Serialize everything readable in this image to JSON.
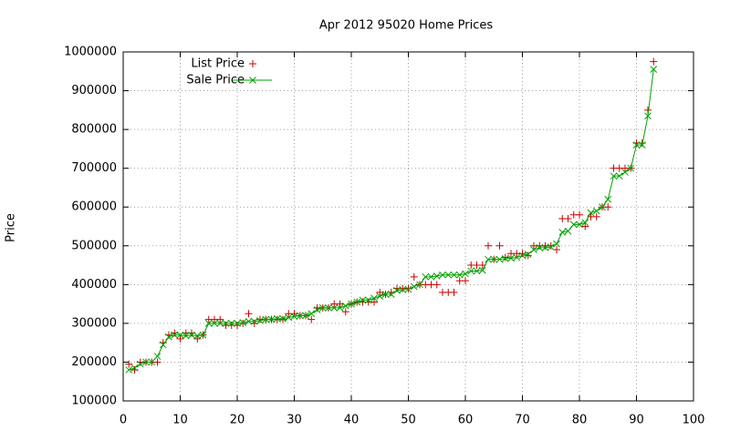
{
  "chart_data": {
    "type": "scatter",
    "title": "Apr 2012 95020 Home Prices",
    "y_label": "Price",
    "x": [
      1,
      2,
      3,
      4,
      5,
      6,
      7,
      8,
      9,
      10,
      11,
      12,
      13,
      14,
      15,
      16,
      17,
      18,
      19,
      20,
      21,
      22,
      23,
      24,
      25,
      26,
      27,
      28,
      29,
      30,
      31,
      32,
      33,
      34,
      35,
      36,
      37,
      38,
      39,
      40,
      41,
      42,
      43,
      44,
      45,
      46,
      47,
      48,
      49,
      50,
      51,
      52,
      53,
      54,
      55,
      56,
      57,
      58,
      59,
      60,
      61,
      62,
      63,
      64,
      65,
      66,
      67,
      68,
      69,
      70,
      71,
      72,
      73,
      74,
      75,
      76,
      77,
      78,
      79,
      80,
      81,
      82,
      83,
      84,
      85,
      86,
      87,
      88,
      89,
      90,
      91,
      92,
      93
    ],
    "series": [
      {
        "name": "List Price",
        "color": "#cc0000",
        "marker": "plus",
        "line": false,
        "values": [
          195000,
          180000,
          200000,
          200000,
          200000,
          200000,
          250000,
          270000,
          275000,
          260000,
          275000,
          275000,
          260000,
          270000,
          310000,
          310000,
          310000,
          295000,
          295000,
          295000,
          300000,
          325000,
          300000,
          310000,
          310000,
          310000,
          310000,
          310000,
          325000,
          325000,
          320000,
          320000,
          310000,
          340000,
          340000,
          340000,
          350000,
          350000,
          330000,
          350000,
          355000,
          355000,
          355000,
          355000,
          380000,
          375000,
          380000,
          390000,
          390000,
          390000,
          420000,
          400000,
          400000,
          400000,
          400000,
          380000,
          380000,
          380000,
          410000,
          410000,
          450000,
          450000,
          450000,
          500000,
          465000,
          500000,
          470000,
          480000,
          480000,
          480000,
          475000,
          500000,
          500000,
          500000,
          500000,
          490000,
          570000,
          570000,
          580000,
          580000,
          550000,
          575000,
          575000,
          600000,
          600000,
          700000,
          700000,
          700000,
          700000,
          765000,
          765000,
          850000,
          975000
        ]
      },
      {
        "name": "Sale Price",
        "color": "#00a000",
        "marker": "cross",
        "line": true,
        "values": [
          180000,
          185000,
          195000,
          200000,
          200000,
          215000,
          245000,
          265000,
          270000,
          270000,
          268000,
          270000,
          268000,
          270000,
          300000,
          300000,
          300000,
          300000,
          300000,
          300000,
          302000,
          305000,
          305000,
          307000,
          310000,
          310000,
          312000,
          312000,
          315000,
          318000,
          320000,
          320000,
          325000,
          335000,
          340000,
          340000,
          340000,
          340000,
          345000,
          350000,
          355000,
          360000,
          360000,
          365000,
          370000,
          375000,
          375000,
          385000,
          387000,
          388000,
          395000,
          400000,
          420000,
          420000,
          422000,
          425000,
          425000,
          425000,
          425000,
          428000,
          435000,
          435000,
          437000,
          465000,
          465000,
          465000,
          467000,
          468000,
          470000,
          475000,
          478000,
          490000,
          495000,
          495000,
          497000,
          505000,
          535000,
          538000,
          555000,
          555000,
          560000,
          585000,
          590000,
          600000,
          620000,
          680000,
          680000,
          690000,
          700000,
          760000,
          760000,
          835000,
          955000
        ]
      }
    ],
    "xlim": [
      0,
      100
    ],
    "xticks": [
      0,
      10,
      20,
      30,
      40,
      50,
      60,
      70,
      80,
      90,
      100
    ],
    "ylim": [
      100000,
      1000000
    ],
    "yticks": [
      100000,
      200000,
      300000,
      400000,
      500000,
      600000,
      700000,
      800000,
      900000,
      1000000
    ],
    "grid": true,
    "legend": "top-left"
  }
}
